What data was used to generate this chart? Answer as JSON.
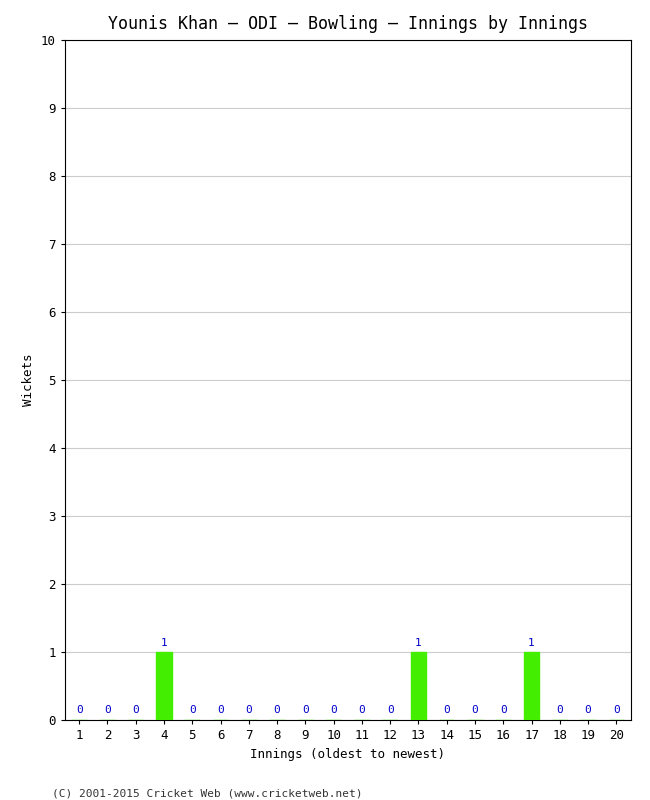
{
  "title": "Younis Khan – ODI – Bowling – Innings by Innings",
  "xlabel": "Innings (oldest to newest)",
  "ylabel": "Wickets",
  "innings": [
    1,
    2,
    3,
    4,
    5,
    6,
    7,
    8,
    9,
    10,
    11,
    12,
    13,
    14,
    15,
    16,
    17,
    18,
    19,
    20
  ],
  "wickets": [
    0,
    0,
    0,
    1,
    0,
    0,
    0,
    0,
    0,
    0,
    0,
    0,
    1,
    0,
    0,
    0,
    1,
    0,
    0,
    0
  ],
  "bar_color": "#44ee00",
  "label_color": "#0000cc",
  "bg_color": "#ffffff",
  "grid_color": "#cccccc",
  "ylim": [
    0,
    10
  ],
  "yticks": [
    0,
    1,
    2,
    3,
    4,
    5,
    6,
    7,
    8,
    9,
    10
  ],
  "title_fontsize": 12,
  "axis_label_fontsize": 9,
  "tick_fontsize": 9,
  "bar_label_fontsize": 8,
  "footer": "(C) 2001-2015 Cricket Web (www.cricketweb.net)",
  "footer_fontsize": 8
}
